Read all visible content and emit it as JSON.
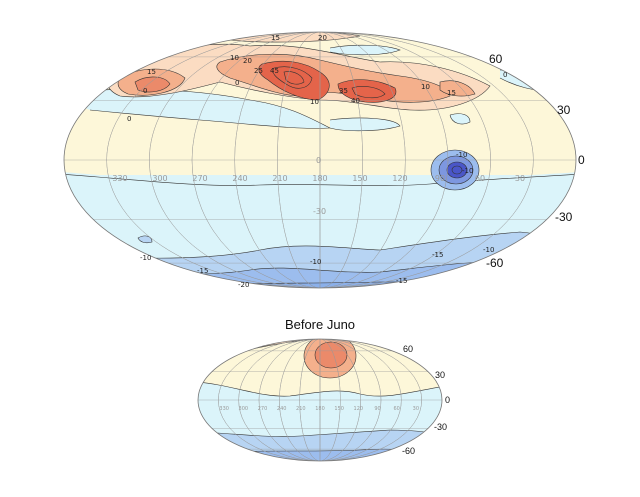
{
  "main_map": {
    "latitude_labels": [
      "60",
      "30",
      "0",
      "-30",
      "-60"
    ],
    "longitude_labels": [
      "330",
      "300",
      "270",
      "240",
      "210",
      "180",
      "150",
      "120",
      "90",
      "60",
      "30"
    ],
    "interior_labels": [
      "0",
      "-30"
    ],
    "contour_labels": [
      "15",
      "0",
      "10",
      "20",
      "25",
      "45",
      "35",
      "40",
      "15",
      "0",
      "0",
      "10",
      "10",
      "15",
      "20",
      "-10",
      "-15",
      "-20",
      "-15",
      "-10",
      "-10",
      "-15",
      "-10",
      "-10",
      "0"
    ]
  },
  "before_juno_map": {
    "title": "Before Juno",
    "latitude_labels": [
      "60",
      "30",
      "0",
      "-30",
      "-60"
    ],
    "longitude_labels": [
      "330",
      "300",
      "270",
      "240",
      "210",
      "180",
      "150",
      "120",
      "90",
      "60",
      "30"
    ]
  },
  "colors": {
    "strong_positive": "#e4644a",
    "positive": "#f4b08c",
    "weak_positive": "#fbdcc2",
    "zero_band": "#fdf7d9",
    "weak_negative": "#dbf4fa",
    "negative": "#b7d4f3",
    "strong_negative": "#4a56c8"
  }
}
